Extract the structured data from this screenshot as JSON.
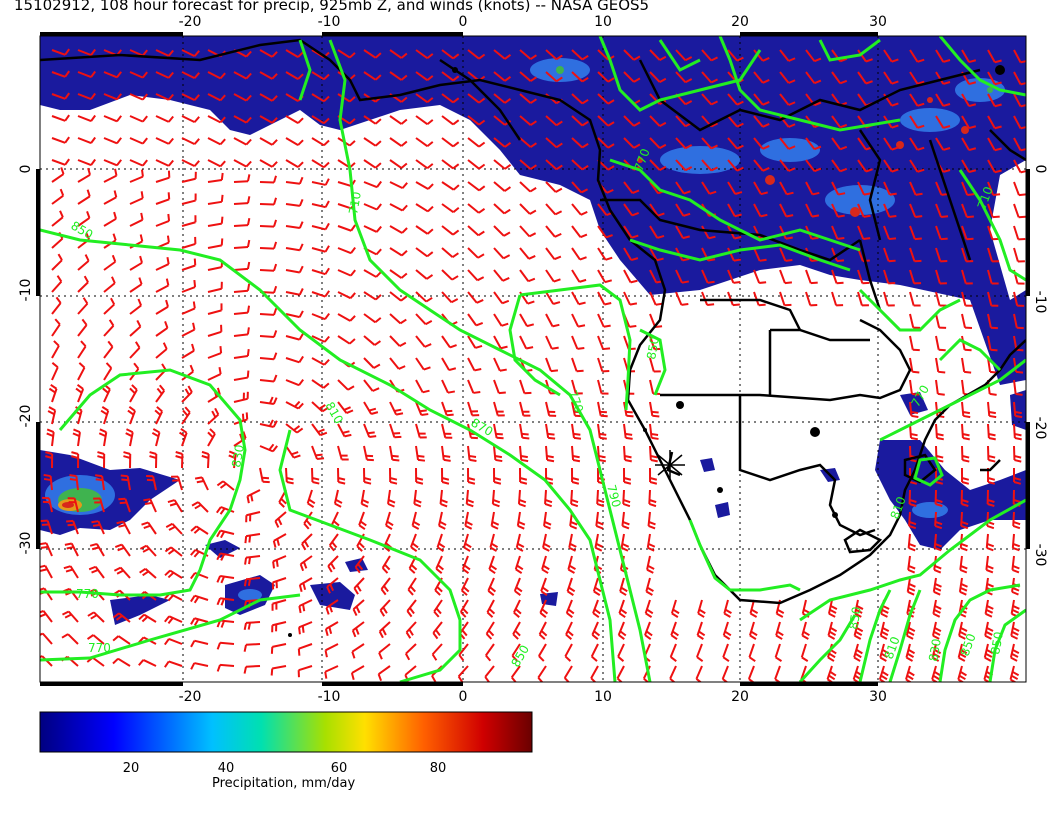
{
  "title": "15102912, 108 hour forecast for precip, 925mb Z, and winds (knots) -- NASA GEOS5",
  "map": {
    "lon_ticks": [
      "-20",
      "-10",
      "0",
      "10",
      "20",
      "30"
    ],
    "lat_ticks": [
      "0",
      "-10",
      "-20",
      "-30"
    ],
    "contour_labels": [
      "770",
      "710",
      "850",
      "810",
      "770",
      "790",
      "830",
      "850",
      "770",
      "870",
      "770",
      "850",
      "810",
      "850",
      "810",
      "770",
      "830",
      "850",
      "850",
      "710"
    ],
    "colors": {
      "precip_low": "#1a1a9e",
      "precip_mid": "#2f6fe0",
      "precip_high": "#d8281b",
      "contour": "#22ee22",
      "wind_barb": "#ee1111",
      "coast": "#000000"
    }
  },
  "colorbar": {
    "label": "Precipitation, mm/day",
    "ticks": [
      "20",
      "40",
      "60",
      "80"
    ],
    "range": [
      0,
      100
    ],
    "stops": [
      "#000080",
      "#0000ff",
      "#00c8ff",
      "#00e0a0",
      "#a0e000",
      "#ffe000",
      "#ff6000",
      "#d00000",
      "#700000"
    ]
  }
}
